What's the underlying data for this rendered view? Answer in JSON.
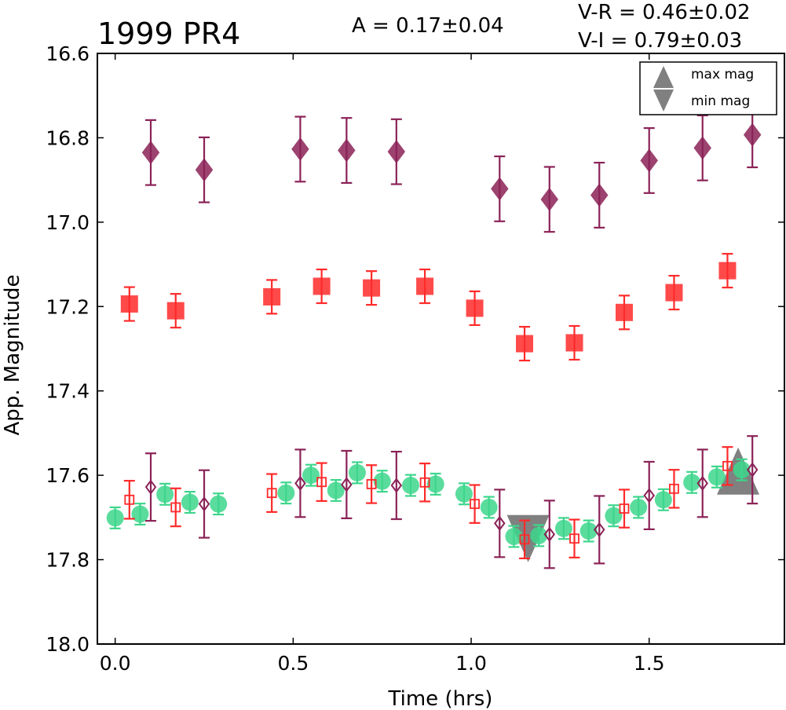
{
  "chart_data": {
    "type": "scatter",
    "title": "1999 PR4",
    "amplitude_text": "A  = 0.17±0.04",
    "color_indices": [
      "V-R = 0.46±0.02",
      "V-I  = 0.79±0.03"
    ],
    "xlabel": "Time (hrs)",
    "ylabel": "App. Magnitude",
    "xlim": [
      -0.05,
      1.88
    ],
    "ylim": [
      18.0,
      16.6
    ],
    "y_inverted": true,
    "xticks": [
      "0.0",
      "0.5",
      "1.0",
      "1.5"
    ],
    "yticks": [
      "16.6",
      "16.8",
      "17.0",
      "17.2",
      "17.4",
      "17.6",
      "17.8",
      "18.0"
    ],
    "grid": false,
    "legend": {
      "position": "top-right",
      "entries": [
        "max mag",
        "min mag"
      ]
    },
    "series": [
      {
        "marker": "diamond",
        "filled": true,
        "color": "#8b2257",
        "points": [
          {
            "x": 0.1,
            "y": 16.835,
            "err": 0.077
          },
          {
            "x": 0.25,
            "y": 16.876,
            "err": 0.077
          },
          {
            "x": 0.52,
            "y": 16.827,
            "err": 0.077
          },
          {
            "x": 0.65,
            "y": 16.83,
            "err": 0.077
          },
          {
            "x": 0.79,
            "y": 16.833,
            "err": 0.077
          },
          {
            "x": 1.08,
            "y": 16.921,
            "err": 0.077
          },
          {
            "x": 1.22,
            "y": 16.946,
            "err": 0.077
          },
          {
            "x": 1.36,
            "y": 16.936,
            "err": 0.077
          },
          {
            "x": 1.5,
            "y": 16.854,
            "err": 0.077
          },
          {
            "x": 1.65,
            "y": 16.824,
            "err": 0.077
          },
          {
            "x": 1.79,
            "y": 16.793,
            "err": 0.077
          }
        ]
      },
      {
        "marker": "square",
        "filled": true,
        "color": "#ff2a2a",
        "points": [
          {
            "x": 0.04,
            "y": 17.194,
            "err": 0.04
          },
          {
            "x": 0.17,
            "y": 17.21,
            "err": 0.04
          },
          {
            "x": 0.44,
            "y": 17.177,
            "err": 0.04
          },
          {
            "x": 0.58,
            "y": 17.152,
            "err": 0.04
          },
          {
            "x": 0.72,
            "y": 17.156,
            "err": 0.04
          },
          {
            "x": 0.87,
            "y": 17.152,
            "err": 0.04
          },
          {
            "x": 1.01,
            "y": 17.204,
            "err": 0.04
          },
          {
            "x": 1.15,
            "y": 17.288,
            "err": 0.04
          },
          {
            "x": 1.29,
            "y": 17.286,
            "err": 0.04
          },
          {
            "x": 1.43,
            "y": 17.214,
            "err": 0.04
          },
          {
            "x": 1.57,
            "y": 17.167,
            "err": 0.04
          },
          {
            "x": 1.72,
            "y": 17.115,
            "err": 0.04
          }
        ]
      },
      {
        "marker": "circle",
        "filled": true,
        "color": "#3dd68c",
        "points": [
          {
            "x": 0.0,
            "y": 17.701,
            "err": 0.025
          },
          {
            "x": 0.07,
            "y": 17.692,
            "err": 0.025
          },
          {
            "x": 0.14,
            "y": 17.645,
            "err": 0.025
          },
          {
            "x": 0.21,
            "y": 17.664,
            "err": 0.025
          },
          {
            "x": 0.29,
            "y": 17.668,
            "err": 0.025
          },
          {
            "x": 0.48,
            "y": 17.642,
            "err": 0.025
          },
          {
            "x": 0.55,
            "y": 17.6,
            "err": 0.025
          },
          {
            "x": 0.62,
            "y": 17.636,
            "err": 0.025
          },
          {
            "x": 0.68,
            "y": 17.594,
            "err": 0.025
          },
          {
            "x": 0.75,
            "y": 17.614,
            "err": 0.025
          },
          {
            "x": 0.83,
            "y": 17.624,
            "err": 0.025
          },
          {
            "x": 0.9,
            "y": 17.621,
            "err": 0.025
          },
          {
            "x": 0.98,
            "y": 17.644,
            "err": 0.025
          },
          {
            "x": 1.05,
            "y": 17.676,
            "err": 0.025
          },
          {
            "x": 1.12,
            "y": 17.745,
            "err": 0.025
          },
          {
            "x": 1.19,
            "y": 17.743,
            "err": 0.025
          },
          {
            "x": 1.26,
            "y": 17.726,
            "err": 0.025
          },
          {
            "x": 1.33,
            "y": 17.732,
            "err": 0.025
          },
          {
            "x": 1.4,
            "y": 17.696,
            "err": 0.025
          },
          {
            "x": 1.47,
            "y": 17.676,
            "err": 0.025
          },
          {
            "x": 1.54,
            "y": 17.658,
            "err": 0.025
          },
          {
            "x": 1.62,
            "y": 17.617,
            "err": 0.025
          },
          {
            "x": 1.69,
            "y": 17.604,
            "err": 0.025
          },
          {
            "x": 1.76,
            "y": 17.587,
            "err": 0.025
          }
        ]
      },
      {
        "marker": "square",
        "filled": false,
        "color": "#ff2a2a",
        "points": [
          {
            "x": 0.04,
            "y": 17.658,
            "err": 0.045
          },
          {
            "x": 0.17,
            "y": 17.676,
            "err": 0.045
          },
          {
            "x": 0.44,
            "y": 17.642,
            "err": 0.045
          },
          {
            "x": 0.58,
            "y": 17.616,
            "err": 0.045
          },
          {
            "x": 0.72,
            "y": 17.621,
            "err": 0.045
          },
          {
            "x": 0.87,
            "y": 17.617,
            "err": 0.045
          },
          {
            "x": 1.01,
            "y": 17.668,
            "err": 0.045
          },
          {
            "x": 1.15,
            "y": 17.752,
            "err": 0.045
          },
          {
            "x": 1.29,
            "y": 17.75,
            "err": 0.045
          },
          {
            "x": 1.43,
            "y": 17.679,
            "err": 0.045
          },
          {
            "x": 1.57,
            "y": 17.632,
            "err": 0.045
          },
          {
            "x": 1.72,
            "y": 17.578,
            "err": 0.045
          }
        ]
      },
      {
        "marker": "diamond",
        "filled": false,
        "color": "#8b2257",
        "points": [
          {
            "x": 0.1,
            "y": 17.628,
            "err": 0.08
          },
          {
            "x": 0.25,
            "y": 17.668,
            "err": 0.08
          },
          {
            "x": 0.52,
            "y": 17.619,
            "err": 0.08
          },
          {
            "x": 0.65,
            "y": 17.622,
            "err": 0.08
          },
          {
            "x": 0.79,
            "y": 17.624,
            "err": 0.08
          },
          {
            "x": 1.08,
            "y": 17.714,
            "err": 0.08
          },
          {
            "x": 1.22,
            "y": 17.74,
            "err": 0.08
          },
          {
            "x": 1.36,
            "y": 17.729,
            "err": 0.08
          },
          {
            "x": 1.5,
            "y": 17.648,
            "err": 0.08
          },
          {
            "x": 1.65,
            "y": 17.619,
            "err": 0.08
          },
          {
            "x": 1.79,
            "y": 17.587,
            "err": 0.08
          }
        ]
      }
    ],
    "extrema_markers": [
      {
        "label": "min mag",
        "marker": "triangle-down",
        "x": 1.16,
        "y": 17.75,
        "color": "#808080"
      },
      {
        "label": "max mag",
        "marker": "triangle-up",
        "x": 1.75,
        "y": 17.59,
        "color": "#808080"
      }
    ]
  }
}
